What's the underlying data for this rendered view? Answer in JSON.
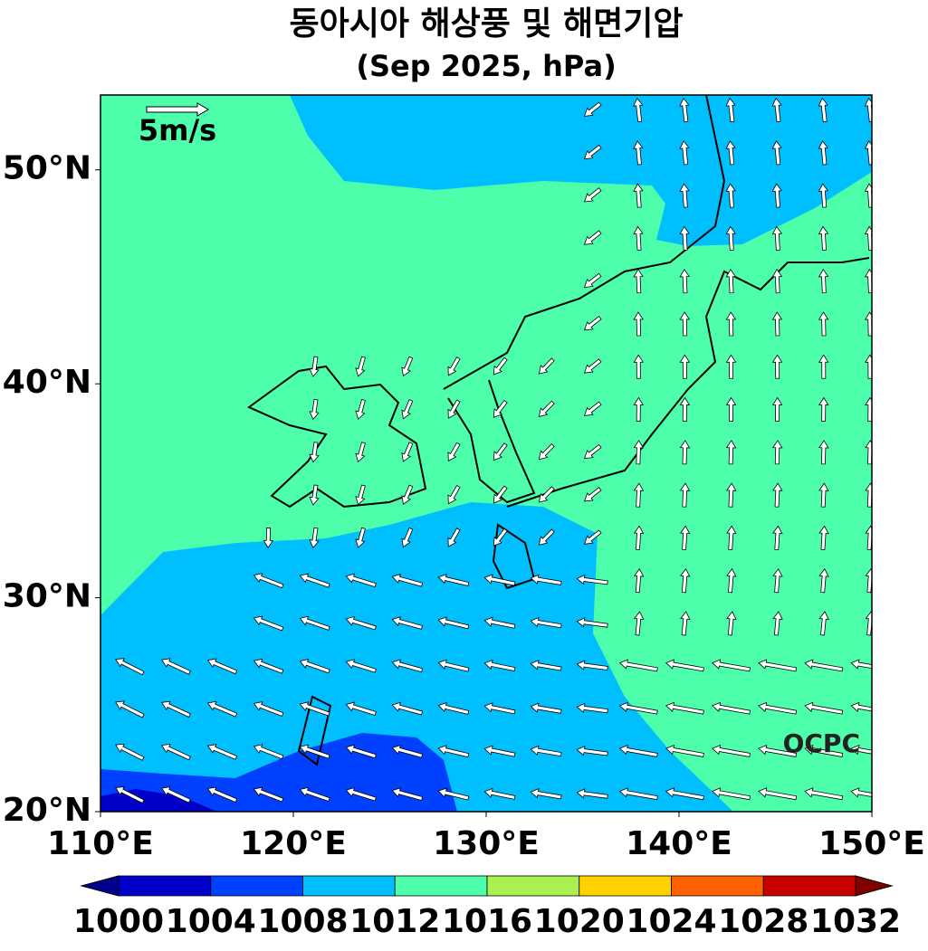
{
  "title": "동아시아 해상풍 및 해면기압",
  "subtitle": "(Sep 2025, hPa)",
  "map": {
    "lon_range": [
      110,
      150
    ],
    "lat_range": [
      20,
      53.5
    ],
    "lon_ticks": [
      {
        "value": 110,
        "label": "110°E"
      },
      {
        "value": 120,
        "label": "120°E"
      },
      {
        "value": 130,
        "label": "130°E"
      },
      {
        "value": 140,
        "label": "140°E"
      },
      {
        "value": 150,
        "label": "150°E"
      }
    ],
    "lat_ticks": [
      {
        "value": 20,
        "label": "20°N"
      },
      {
        "value": 30,
        "label": "30°N"
      },
      {
        "value": 40,
        "label": "40°N"
      },
      {
        "value": 50,
        "label": "50°N"
      }
    ],
    "reference_vector": "5m/s",
    "credit": "OCPC"
  },
  "colorbar": {
    "levels": [
      1000,
      1004,
      1008,
      1012,
      1016,
      1020,
      1024,
      1028,
      1032
    ],
    "colors": [
      "#0000c8",
      "#0040ff",
      "#00bfff",
      "#4dffaa",
      "#aaf050",
      "#ffd200",
      "#ff6000",
      "#c80000"
    ],
    "under_color": "#00008c",
    "over_color": "#800000"
  }
}
